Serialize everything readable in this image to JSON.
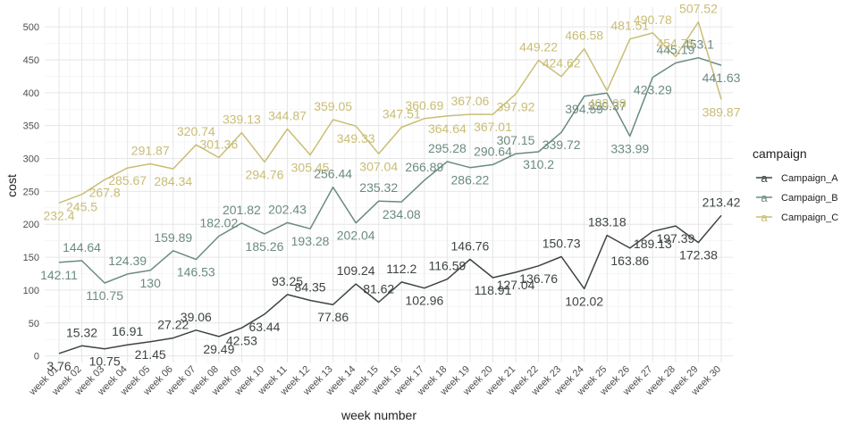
{
  "chart_data": {
    "type": "line",
    "title": "",
    "xlabel": "week number",
    "ylabel": "cost",
    "ylim": [
      -10,
      530
    ],
    "yticks": [
      0,
      50,
      100,
      150,
      200,
      250,
      300,
      350,
      400,
      450,
      500
    ],
    "grid": true,
    "legend": {
      "title": "campaign",
      "position": "right",
      "key_glyph": "a"
    },
    "categories": [
      "week 01",
      "week 02",
      "week 03",
      "week 04",
      "week 05",
      "week 06",
      "week 07",
      "week 08",
      "week 09",
      "week 10",
      "week 11",
      "week 12",
      "week 13",
      "week 14",
      "week 15",
      "week 16",
      "week 17",
      "week 18",
      "week 19",
      "week 20",
      "week 21",
      "week 22",
      "week 23",
      "week 24",
      "week 25",
      "week 26",
      "week 27",
      "week 28",
      "week 29",
      "week 30"
    ],
    "series": [
      {
        "name": "Campaign_A",
        "color": "#3d4444",
        "values": [
          3.76,
          15.32,
          10.75,
          16.91,
          21.45,
          27.22,
          39.06,
          29.49,
          42.53,
          63.44,
          93.25,
          84.35,
          77.86,
          109.24,
          81.62,
          112.2,
          102.96,
          116.59,
          146.76,
          118.91,
          127.04,
          136.76,
          150.73,
          102.02,
          183.18,
          163.86,
          189.13,
          197.39,
          172.38,
          213.42
        ],
        "labels": [
          {
            "text": "3.76",
            "x": 0,
            "y": 3.76,
            "pos": "below"
          },
          {
            "text": "15.32",
            "x": 1,
            "y": 15.32,
            "pos": "above"
          },
          {
            "text": "10.75",
            "x": 2,
            "y": 10.75,
            "pos": "below"
          },
          {
            "text": "16.91",
            "x": 3,
            "y": 16.91,
            "pos": "above"
          },
          {
            "text": "21.45",
            "x": 4,
            "y": 21.45,
            "pos": "below"
          },
          {
            "text": "27.22",
            "x": 5,
            "y": 27.22,
            "pos": "above"
          },
          {
            "text": "39.06",
            "x": 6,
            "y": 39.06,
            "pos": "above"
          },
          {
            "text": "29.49",
            "x": 7,
            "y": 29.49,
            "pos": "below"
          },
          {
            "text": "42.53",
            "x": 8,
            "y": 42.53,
            "pos": "below"
          },
          {
            "text": "63.44",
            "x": 9,
            "y": 63.44,
            "pos": "below"
          },
          {
            "text": "93.25",
            "x": 10,
            "y": 93.25,
            "pos": "above"
          },
          {
            "text": "84.35",
            "x": 11,
            "y": 84.35,
            "pos": "above"
          },
          {
            "text": "77.86",
            "x": 12,
            "y": 77.86,
            "pos": "below"
          },
          {
            "text": "109.24",
            "x": 13,
            "y": 109.24,
            "pos": "above"
          },
          {
            "text": "81.62",
            "x": 14,
            "y": 81.62,
            "pos": "above"
          },
          {
            "text": "112.2",
            "x": 15,
            "y": 112.2,
            "pos": "above"
          },
          {
            "text": "102.96",
            "x": 16,
            "y": 102.96,
            "pos": "below"
          },
          {
            "text": "116.59",
            "x": 17,
            "y": 116.59,
            "pos": "above"
          },
          {
            "text": "146.76",
            "x": 18,
            "y": 146.76,
            "pos": "above"
          },
          {
            "text": "118.91",
            "x": 19,
            "y": 118.91,
            "pos": "below"
          },
          {
            "text": "127.04",
            "x": 20,
            "y": 127.04,
            "pos": "below"
          },
          {
            "text": "136.76",
            "x": 21,
            "y": 136.76,
            "pos": "below"
          },
          {
            "text": "150.73",
            "x": 22,
            "y": 150.73,
            "pos": "above"
          },
          {
            "text": "102.02",
            "x": 23,
            "y": 102.02,
            "pos": "below"
          },
          {
            "text": "183.18",
            "x": 24,
            "y": 183.18,
            "pos": "above"
          },
          {
            "text": "163.86",
            "x": 25,
            "y": 163.86,
            "pos": "below"
          },
          {
            "text": "189.13",
            "x": 26,
            "y": 189.13,
            "pos": "below"
          },
          {
            "text": "197.39",
            "x": 27,
            "y": 197.39,
            "pos": "below"
          },
          {
            "text": "172.38",
            "x": 28,
            "y": 172.38,
            "pos": "below"
          },
          {
            "text": "213.42",
            "x": 29,
            "y": 213.42,
            "pos": "above"
          }
        ]
      },
      {
        "name": "Campaign_B",
        "color": "#6a8b80",
        "values": [
          142.11,
          144.64,
          110.75,
          124.39,
          130,
          159.89,
          146.53,
          182.02,
          201.82,
          185.26,
          202.43,
          193.28,
          256.44,
          202.04,
          235.32,
          234.08,
          266.89,
          295.28,
          286.22,
          290.64,
          307.15,
          310.2,
          339.72,
          394.59,
          399.37,
          333.99,
          423.29,
          445.19,
          453.1,
          441.63
        ],
        "labels": [
          {
            "text": "142.11",
            "x": 0,
            "y": 142.11,
            "pos": "below"
          },
          {
            "text": "144.64",
            "x": 1,
            "y": 144.64,
            "pos": "above"
          },
          {
            "text": "110.75",
            "x": 2,
            "y": 110.75,
            "pos": "below"
          },
          {
            "text": "124.39",
            "x": 3,
            "y": 124.39,
            "pos": "above"
          },
          {
            "text": "130",
            "x": 4,
            "y": 130,
            "pos": "below"
          },
          {
            "text": "159.89",
            "x": 5,
            "y": 159.89,
            "pos": "above"
          },
          {
            "text": "146.53",
            "x": 6,
            "y": 146.53,
            "pos": "below"
          },
          {
            "text": "182.02",
            "x": 7,
            "y": 182.02,
            "pos": "above"
          },
          {
            "text": "201.82",
            "x": 8,
            "y": 201.82,
            "pos": "above"
          },
          {
            "text": "185.26",
            "x": 9,
            "y": 185.26,
            "pos": "below"
          },
          {
            "text": "202.43",
            "x": 10,
            "y": 202.43,
            "pos": "above"
          },
          {
            "text": "193.28",
            "x": 11,
            "y": 193.28,
            "pos": "below"
          },
          {
            "text": "256.44",
            "x": 12,
            "y": 256.44,
            "pos": "above"
          },
          {
            "text": "202.04",
            "x": 13,
            "y": 202.04,
            "pos": "below"
          },
          {
            "text": "235.32",
            "x": 14,
            "y": 235.32,
            "pos": "above"
          },
          {
            "text": "234.08",
            "x": 15,
            "y": 234.08,
            "pos": "below"
          },
          {
            "text": "266.89",
            "x": 16,
            "y": 266.89,
            "pos": "above"
          },
          {
            "text": "295.28",
            "x": 17,
            "y": 295.28,
            "pos": "above"
          },
          {
            "text": "286.22",
            "x": 18,
            "y": 286.22,
            "pos": "below"
          },
          {
            "text": "290.64",
            "x": 19,
            "y": 290.64,
            "pos": "above"
          },
          {
            "text": "307.15",
            "x": 20,
            "y": 307.15,
            "pos": "above"
          },
          {
            "text": "310.2",
            "x": 21,
            "y": 310.2,
            "pos": "below"
          },
          {
            "text": "339.72",
            "x": 22,
            "y": 339.72,
            "pos": "below"
          },
          {
            "text": "394.59",
            "x": 23,
            "y": 394.59,
            "pos": "below"
          },
          {
            "text": "399.37",
            "x": 24,
            "y": 399.37,
            "pos": "below"
          },
          {
            "text": "333.99",
            "x": 25,
            "y": 333.99,
            "pos": "below"
          },
          {
            "text": "423.29",
            "x": 26,
            "y": 423.29,
            "pos": "below"
          },
          {
            "text": "445.19",
            "x": 27,
            "y": 445.19,
            "pos": "above"
          },
          {
            "text": "453.1",
            "x": 28,
            "y": 453.1,
            "pos": "above"
          },
          {
            "text": "441.63",
            "x": 29,
            "y": 441.63,
            "pos": "below"
          }
        ]
      },
      {
        "name": "Campaign_C",
        "color": "#c9bd74",
        "values": [
          232.4,
          245.5,
          267.8,
          285.67,
          291.87,
          284.34,
          320.74,
          301.36,
          339.13,
          294.76,
          344.87,
          305.45,
          359.05,
          349.33,
          307.04,
          347.51,
          360.69,
          364.64,
          367.06,
          367.01,
          397.92,
          449.22,
          424.62,
          466.58,
          403.08,
          481.51,
          490.78,
          454.75,
          507.52,
          389.87
        ],
        "labels": [
          {
            "text": "232.4",
            "x": 0,
            "y": 232.4,
            "pos": "below"
          },
          {
            "text": "245.5",
            "x": 1,
            "y": 245.5,
            "pos": "below"
          },
          {
            "text": "267.8",
            "x": 2,
            "y": 267.8,
            "pos": "below"
          },
          {
            "text": "285.67",
            "x": 3,
            "y": 285.67,
            "pos": "below"
          },
          {
            "text": "291.87",
            "x": 4,
            "y": 291.87,
            "pos": "above"
          },
          {
            "text": "284.34",
            "x": 5,
            "y": 284.34,
            "pos": "below"
          },
          {
            "text": "320.74",
            "x": 6,
            "y": 320.74,
            "pos": "above"
          },
          {
            "text": "301.36",
            "x": 7,
            "y": 301.36,
            "pos": "above"
          },
          {
            "text": "339.13",
            "x": 8,
            "y": 339.13,
            "pos": "above"
          },
          {
            "text": "294.76",
            "x": 9,
            "y": 294.76,
            "pos": "below"
          },
          {
            "text": "344.87",
            "x": 10,
            "y": 344.87,
            "pos": "above"
          },
          {
            "text": "305.45",
            "x": 11,
            "y": 305.45,
            "pos": "below"
          },
          {
            "text": "359.05",
            "x": 12,
            "y": 359.05,
            "pos": "above"
          },
          {
            "text": "349.33",
            "x": 13,
            "y": 349.33,
            "pos": "below"
          },
          {
            "text": "307.04",
            "x": 14,
            "y": 307.04,
            "pos": "below"
          },
          {
            "text": "347.51",
            "x": 15,
            "y": 347.51,
            "pos": "above"
          },
          {
            "text": "360.69",
            "x": 16,
            "y": 360.69,
            "pos": "above"
          },
          {
            "text": "364.64",
            "x": 17,
            "y": 364.64,
            "pos": "below"
          },
          {
            "text": "367.06",
            "x": 18,
            "y": 367.06,
            "pos": "above"
          },
          {
            "text": "367.01",
            "x": 19,
            "y": 367.01,
            "pos": "below"
          },
          {
            "text": "397.92",
            "x": 20,
            "y": 397.92,
            "pos": "below"
          },
          {
            "text": "449.22",
            "x": 21,
            "y": 449.22,
            "pos": "above"
          },
          {
            "text": "424.62",
            "x": 22,
            "y": 424.62,
            "pos": "above"
          },
          {
            "text": "466.58",
            "x": 23,
            "y": 466.58,
            "pos": "above"
          },
          {
            "text": "403.08",
            "x": 24,
            "y": 403.08,
            "pos": "below"
          },
          {
            "text": "481.51",
            "x": 25,
            "y": 481.51,
            "pos": "above"
          },
          {
            "text": "490.78",
            "x": 26,
            "y": 490.78,
            "pos": "above"
          },
          {
            "text": "454.75",
            "x": 27,
            "y": 454.75,
            "pos": "above"
          },
          {
            "text": "507.52",
            "x": 28,
            "y": 507.52,
            "pos": "above"
          },
          {
            "text": "389.87",
            "x": 29,
            "y": 389.87,
            "pos": "below"
          }
        ]
      }
    ]
  }
}
